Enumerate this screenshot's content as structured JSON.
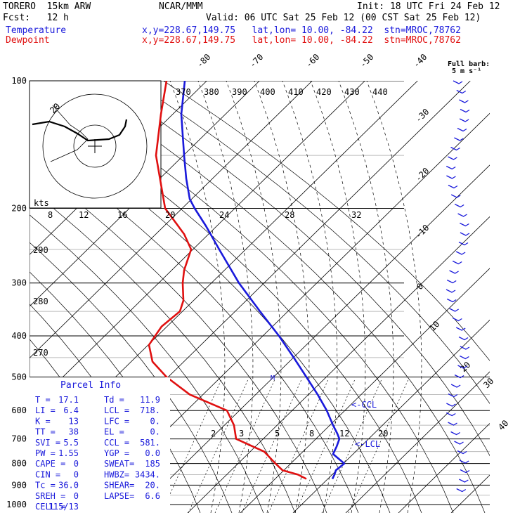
{
  "header": {
    "model": "TORERO  15km ARW",
    "org": "NCAR/MMM",
    "init": "Init: 18 UTC Fri 24 Feb 12",
    "fcst": "Fcst:   12 h",
    "valid": "Valid: 06 UTC Sat 25 Feb 12 (00 CST Sat 25 Feb 12)",
    "temp_label": "Temperature",
    "dew_label": "Dewpoint",
    "loc_line": "x,y=228.67,149.75   lat,lon= 10.00, -84.22  stn=MROC,78762",
    "barb_note_1": "Full barb:",
    "barb_note_2": "5 m s⁻¹",
    "hodo_units": "kts",
    "hodo_ring": "20"
  },
  "colors": {
    "temperature": "#1a1adb",
    "dewpoint": "#e01010",
    "grid": "#000000"
  },
  "parcel": {
    "title": "Parcel Info",
    "rows": [
      [
        "T  =",
        "17.1",
        "Td =",
        "11.9"
      ],
      [
        "LI =",
        "6.4",
        "LCL =",
        "718."
      ],
      [
        "K  =",
        "13",
        "LFC =",
        "0."
      ],
      [
        "TT =",
        "38",
        "EL =",
        "0."
      ],
      [
        "SVI =",
        "5.5",
        "CCL =",
        "581."
      ],
      [
        "PW =",
        "1.55",
        "YGP =",
        "0.0"
      ],
      [
        "CAPE =",
        "0",
        "SWEAT=",
        "185"
      ],
      [
        "CIN =",
        "0",
        "HWBZ=",
        "3434."
      ],
      [
        "Tc =",
        "36.0",
        "SHEAR=",
        "20."
      ],
      [
        "SREH =",
        "0",
        "LAPSE=",
        "6.6"
      ],
      [
        "CELL =",
        "115/13",
        "",
        ""
      ]
    ]
  },
  "chart_data": {
    "type": "line",
    "title": "",
    "xlabel": "",
    "ylabel": "",
    "ylim": [
      1000,
      100
    ],
    "y_log": true,
    "pressure_levels": [
      100,
      200,
      300,
      400,
      500,
      600,
      700,
      800,
      900,
      1000
    ],
    "pressure_tick_labels": [
      "100",
      "200",
      "300",
      "400",
      "500",
      "600",
      "700",
      "800",
      "900",
      "1000"
    ],
    "isotherm_labels": [
      "-80",
      "-70",
      "-60",
      "-50",
      "-40",
      "-30",
      "-20",
      "-10",
      "0",
      "10",
      "20",
      "30",
      "40"
    ],
    "theta_labels": [
      "370",
      "380",
      "390",
      "400",
      "410",
      "420",
      "430",
      "440"
    ],
    "dry_adiabat_labels": [
      "290",
      "280",
      "270"
    ],
    "mixing_ratio_labels_upper": [
      "8",
      "12",
      "16",
      "20",
      "24",
      "28",
      "32"
    ],
    "mixing_ratio_labels_lower": [
      "2",
      "3",
      "5",
      "8",
      "12",
      "20"
    ],
    "annotations": [
      "<-CCL",
      "<-LCL",
      "M"
    ],
    "series": [
      {
        "name": "Temperature",
        "color": "#1a1adb",
        "p": [
          100,
          120,
          150,
          170,
          190,
          200,
          220,
          250,
          300,
          350,
          400,
          450,
          500,
          550,
          600,
          650,
          680,
          700,
          730,
          760,
          800,
          830,
          850,
          870
        ],
        "x": [
          263,
          258,
          262,
          265,
          270,
          277,
          293,
          312,
          340,
          370,
          397,
          418,
          436,
          452,
          465,
          474,
          480,
          483,
          479,
          474,
          490,
          478,
          476,
          473
        ]
      },
      {
        "name": "Dewpoint",
        "color": "#e01010",
        "p": [
          100,
          120,
          150,
          200,
          230,
          250,
          280,
          300,
          330,
          350,
          380,
          420,
          460,
          500,
          550,
          600,
          650,
          700,
          750,
          800,
          830,
          850,
          870
        ],
        "x": [
          237,
          229,
          222,
          235,
          262,
          272,
          262,
          260,
          261,
          256,
          230,
          212,
          217,
          237,
          270,
          323,
          333,
          336,
          376,
          392,
          402,
          424,
          436
        ]
      }
    ]
  }
}
